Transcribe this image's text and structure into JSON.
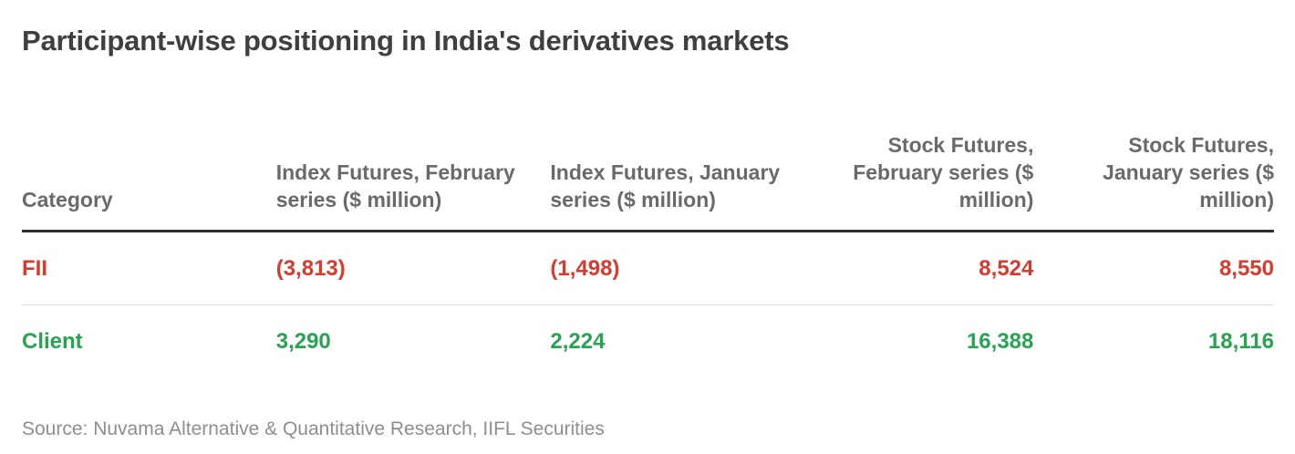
{
  "title": "Participant-wise positioning in India's derivatives markets",
  "palette": {
    "title_color": "#3f3f3f",
    "header_color": "#6a6a6a",
    "negative_color": "#d93a2e",
    "positive_color": "#27a452",
    "header_rule_color": "#2f2f2f",
    "row_rule_color": "#e2e2e2",
    "source_color": "#8e8e8e",
    "background": "#ffffff"
  },
  "table": {
    "columns": [
      {
        "label": "Category",
        "align": "left"
      },
      {
        "label": "Index Futures, February series ($ million)",
        "align": "left"
      },
      {
        "label": "Index Futures, January series ($ million)",
        "align": "left"
      },
      {
        "label": "Stock Futures, February series ($ million)",
        "align": "right"
      },
      {
        "label": "Stock Futures, January series ($ million)",
        "align": "right"
      }
    ],
    "rows": [
      {
        "category": "FII",
        "values": [
          "(3,813)",
          "(1,498)",
          "8,524",
          "8,550"
        ],
        "tone": "negative"
      },
      {
        "category": "Client",
        "values": [
          "3,290",
          "2,224",
          "16,388",
          "18,116"
        ],
        "tone": "positive"
      }
    ]
  },
  "source": "Source: Nuvama Alternative & Quantitative Research, IIFL Securities",
  "chart_data": {
    "type": "table",
    "title": "Participant-wise positioning in India's derivatives markets",
    "columns": [
      "Category",
      "Index Futures, February series ($ million)",
      "Index Futures, January series ($ million)",
      "Stock Futures, February series ($ million)",
      "Stock Futures, January series ($ million)"
    ],
    "rows": [
      {
        "category": "FII",
        "index_futures_feb_series": -3813,
        "index_futures_jan_series": -1498,
        "stock_futures_feb_series": 8524,
        "stock_futures_jan_series": 8550
      },
      {
        "category": "Client",
        "index_futures_feb_series": 3290,
        "index_futures_jan_series": 2224,
        "stock_futures_feb_series": 16388,
        "stock_futures_jan_series": 18116
      }
    ],
    "notes": "Negative values shown in parentheses and red; positive values in green",
    "source": "Source: Nuvama Alternative & Quantitative Research, IIFL Securities"
  }
}
